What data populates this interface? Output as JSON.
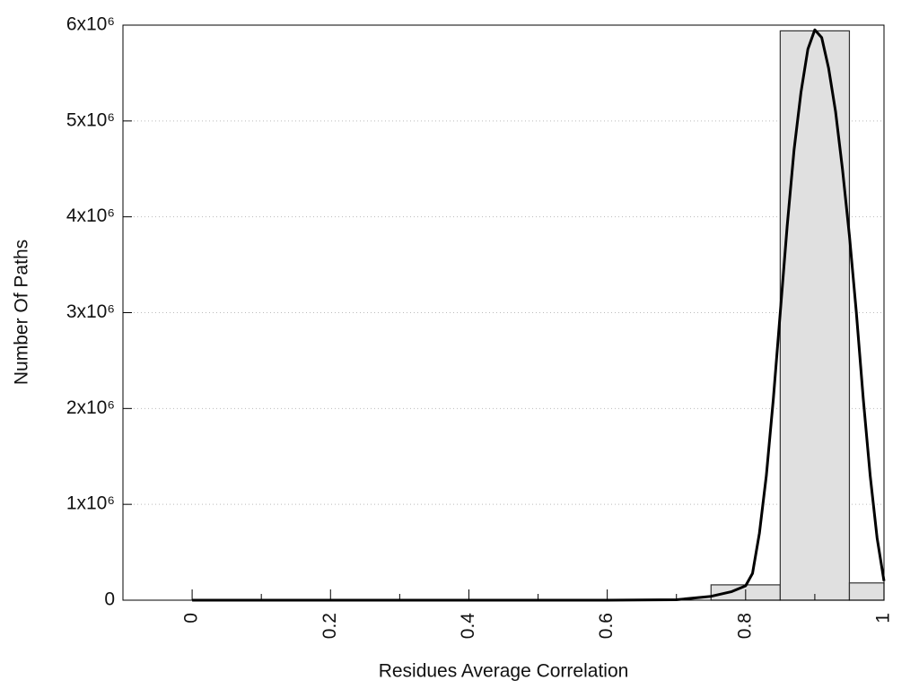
{
  "chart_data": {
    "type": "histogram",
    "x_label": "Residues Average Correlation",
    "y_label": "Number Of Paths",
    "bins": [
      0.75,
      0.85,
      0.95,
      1.0
    ],
    "counts": [
      160000,
      5940000,
      180000
    ],
    "color": "#e0e0e0",
    "edge_color": "#333333",
    "overlay": {
      "type": "line",
      "color": "#000000",
      "x": [
        0,
        0.1,
        0.2,
        0.3,
        0.4,
        0.5,
        0.6,
        0.7,
        0.75,
        0.78,
        0.8,
        0.81,
        0.82,
        0.83,
        0.84,
        0.85,
        0.86,
        0.87,
        0.88,
        0.89,
        0.9,
        0.91,
        0.92,
        0.93,
        0.94,
        0.95,
        0.96,
        0.97,
        0.98,
        0.99,
        1.0
      ],
      "values": [
        0,
        0,
        0,
        0,
        0,
        0,
        0,
        5000,
        40000,
        90000,
        150000,
        280000,
        700000,
        1300000,
        2100000,
        3000000,
        3900000,
        4700000,
        5300000,
        5750000,
        5950000,
        5870000,
        5550000,
        5100000,
        4500000,
        3800000,
        3000000,
        2100000,
        1300000,
        650000,
        200000
      ]
    },
    "xlim": [
      -0.1,
      1
    ],
    "ylim": [
      0,
      6000000
    ],
    "xticks": [
      0,
      0.2,
      0.4,
      0.6,
      0.8,
      1
    ],
    "xminor_ticks": [
      0.1,
      0.3,
      0.5,
      0.7,
      0.9
    ],
    "yticks": [
      0,
      {
        "value": 1000000,
        "label": "1x10⁶"
      },
      {
        "value": 2000000,
        "label": "2x10⁶"
      },
      {
        "value": 3000000,
        "label": "3x10⁶"
      },
      {
        "value": 4000000,
        "label": "4x10⁶"
      },
      {
        "value": 5000000,
        "label": "5x10⁶"
      },
      {
        "value": 6000000,
        "label": "6x10⁶"
      }
    ],
    "grid": true
  }
}
